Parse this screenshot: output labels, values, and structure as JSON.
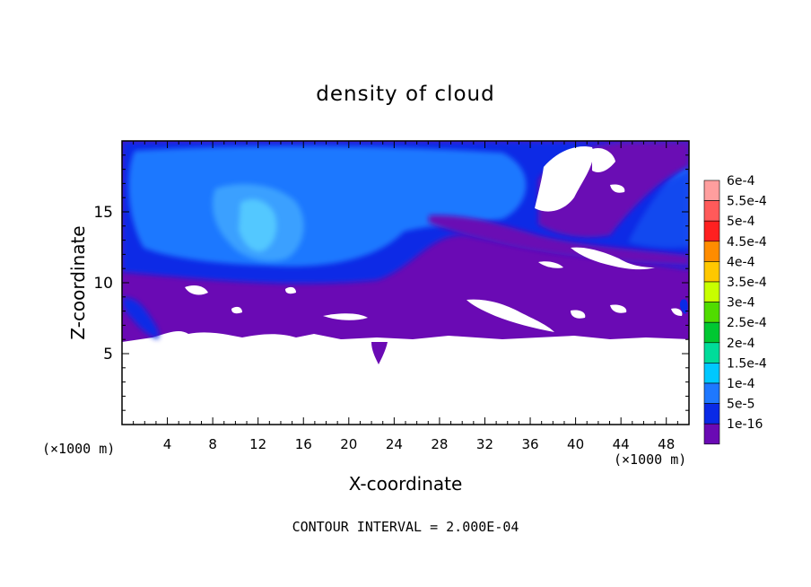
{
  "chart_data": {
    "type": "heatmap",
    "title": "density of cloud",
    "xlabel": "X-coordinate",
    "ylabel": "Z-coordinate",
    "x_unit_left": "(×1000 m)",
    "x_unit_right": "(×1000 m)",
    "xlim": [
      0,
      50
    ],
    "ylim": [
      0,
      20
    ],
    "x_ticks": [
      "4",
      "8",
      "12",
      "16",
      "20",
      "24",
      "28",
      "32",
      "36",
      "40",
      "44",
      "48"
    ],
    "y_ticks": [
      "5",
      "10",
      "15"
    ],
    "footer": "CONTOUR INTERVAL = 2.000E-04",
    "colorbar": {
      "labels": [
        "6e-4",
        "5.5e-4",
        "5e-4",
        "4.5e-4",
        "4e-4",
        "3.5e-4",
        "3e-4",
        "2.5e-4",
        "2e-4",
        "1.5e-4",
        "1e-4",
        "5e-5",
        "1e-16"
      ],
      "colors": [
        "#ff9e9e",
        "#ff5a5a",
        "#ff2020",
        "#ff8c00",
        "#ffc800",
        "#c8ff00",
        "#50dc00",
        "#00c832",
        "#00dc9a",
        "#00c8ff",
        "#1e78ff",
        "#0a2ae6",
        "#6a0ab4"
      ]
    },
    "regions": {
      "cloud_base_z": 5.9,
      "low_layer_z": [
        5.9,
        10.6
      ],
      "upper_layer_z": [
        10.6,
        19.8
      ],
      "max_value_approx": 0.00015
    }
  }
}
